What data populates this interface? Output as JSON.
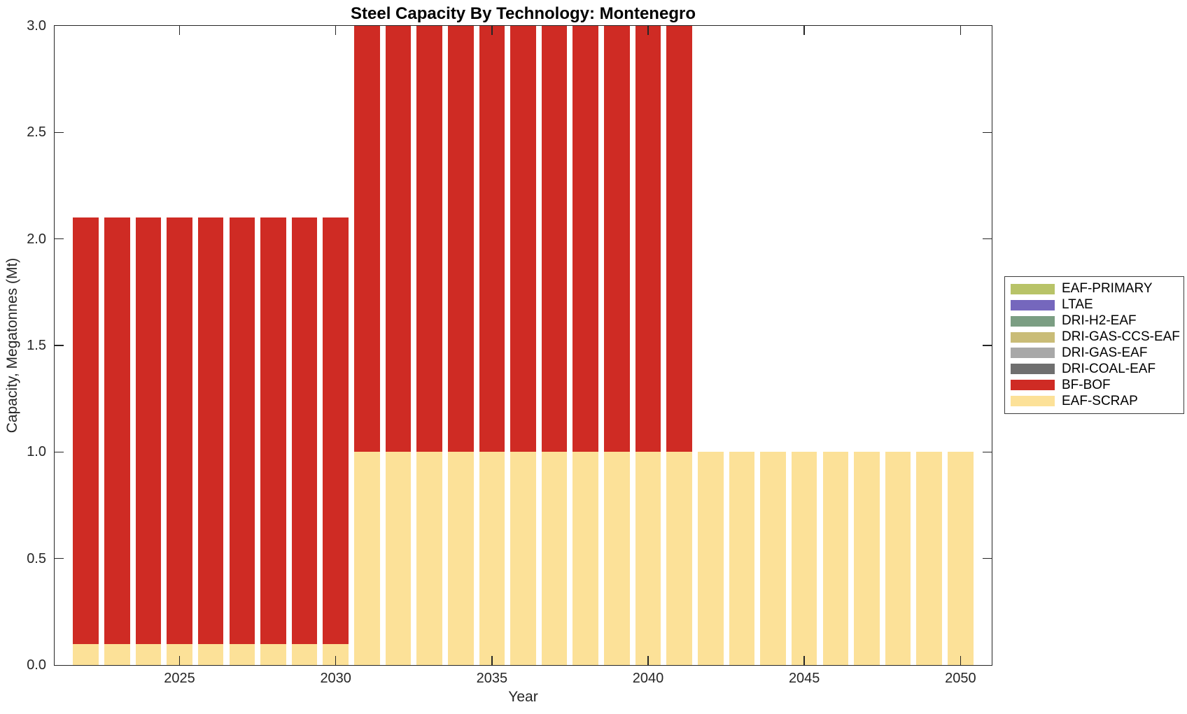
{
  "title": "Steel Capacity By Technology: Montenegro",
  "axes": {
    "xlabel": "Year",
    "ylabel": "Capacity, Megatonnes (Mt)"
  },
  "chart_data": {
    "type": "bar",
    "stacked": true,
    "title": "Steel Capacity By Technology: Montenegro",
    "xlabel": "Year",
    "ylabel": "Capacity, Megatonnes (Mt)",
    "xlim": [
      2021,
      2051
    ],
    "ylim": [
      0,
      3.0
    ],
    "xticks": [
      2025,
      2030,
      2035,
      2040,
      2045,
      2050
    ],
    "ytick_labels": [
      "0.0",
      "0.5",
      "1.0",
      "1.5",
      "2.0",
      "2.5",
      "3.0"
    ],
    "ytick_values": [
      0,
      0.5,
      1.0,
      1.5,
      2.0,
      2.5,
      3.0
    ],
    "grid": false,
    "legend_position": "right-outside",
    "bar_width_years": 0.82,
    "x": [
      2022,
      2023,
      2024,
      2025,
      2026,
      2027,
      2028,
      2029,
      2030,
      2031,
      2032,
      2033,
      2034,
      2035,
      2036,
      2037,
      2038,
      2039,
      2040,
      2041,
      2042,
      2043,
      2044,
      2045,
      2046,
      2047,
      2048,
      2049,
      2050
    ],
    "series": [
      {
        "name": "EAF-SCRAP",
        "color": "#fce198",
        "values": [
          0.1,
          0.1,
          0.1,
          0.1,
          0.1,
          0.1,
          0.1,
          0.1,
          0.1,
          1.0,
          1.0,
          1.0,
          1.0,
          1.0,
          1.0,
          1.0,
          1.0,
          1.0,
          1.0,
          1.0,
          1.0,
          1.0,
          1.0,
          1.0,
          1.0,
          1.0,
          1.0,
          1.0,
          1.0
        ]
      },
      {
        "name": "BF-BOF",
        "color": "#cf2b24",
        "values": [
          2.0,
          2.0,
          2.0,
          2.0,
          2.0,
          2.0,
          2.0,
          2.0,
          2.0,
          2.0,
          2.0,
          2.0,
          2.0,
          2.0,
          2.0,
          2.0,
          2.0,
          2.0,
          2.0,
          2.0,
          0,
          0,
          0,
          0,
          0,
          0,
          0,
          0,
          0
        ]
      }
    ],
    "legend": [
      {
        "label": "EAF-PRIMARY",
        "color": "#b8c368"
      },
      {
        "label": "LTAE",
        "color": "#7567bd"
      },
      {
        "label": "DRI-H2-EAF",
        "color": "#7b9e83"
      },
      {
        "label": "DRI-GAS-CCS-EAF",
        "color": "#c9bc77"
      },
      {
        "label": "DRI-GAS-EAF",
        "color": "#a8a8a8"
      },
      {
        "label": "DRI-COAL-EAF",
        "color": "#6f6f6f"
      },
      {
        "label": "BF-BOF",
        "color": "#cf2b24"
      },
      {
        "label": "EAF-SCRAP",
        "color": "#fce198"
      }
    ]
  }
}
